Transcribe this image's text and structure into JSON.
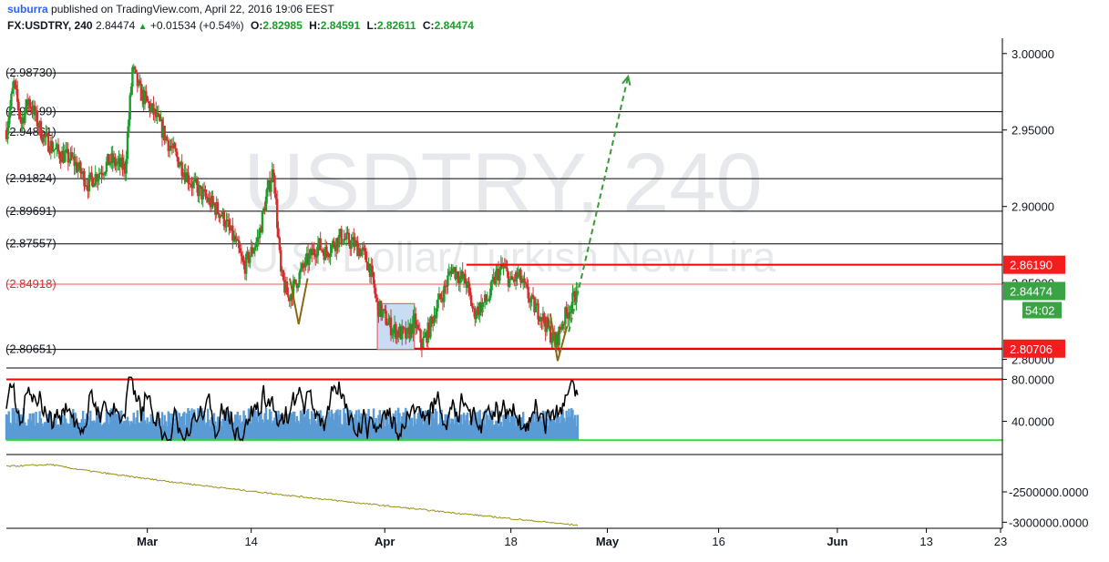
{
  "header": {
    "user": "suburra",
    "published_text": "published on TradingView.com, April 22, 2016 19:06 EEST",
    "symbol": "FX:USDTRY, 240",
    "last": "2.84474",
    "change": "+0.01534 (+0.54%)",
    "o_label": "O:",
    "o": "2.82985",
    "h_label": "H:",
    "h": "2.84591",
    "l_label": "L:",
    "l": "2.82611",
    "c_label": "C:",
    "c": "2.84474"
  },
  "watermark": {
    "symbol": "USDTRY, 240",
    "description": "U.S. Dollar/Turkish New Lira"
  },
  "colors": {
    "up": "#1a9e2a",
    "down": "#d32f2f",
    "resistance": "#ff0000",
    "annotation": "#8b6914",
    "projection": "#3b9a3b",
    "box": "#c8dcf3",
    "rsi_line": "#000000",
    "volume": "#5b9bd5",
    "oscillator": "#9a8f1a"
  },
  "chart_data": [
    {
      "type": "candlestick",
      "name": "price",
      "ylim": [
        2.795,
        3.01
      ],
      "y_ticks": [
        3.0,
        2.95,
        2.9,
        2.85,
        2.8
      ],
      "y_tick_labels": [
        "3.00000",
        "2.95000",
        "2.90000",
        "2.85000",
        "2.80000"
      ],
      "x_range_days": [
        41,
        175
      ],
      "x_ticks": [
        {
          "day": 60,
          "label": "Mar"
        },
        {
          "day": 74,
          "label": "14"
        },
        {
          "day": 92,
          "label": "Apr"
        },
        {
          "day": 109,
          "label": "18"
        },
        {
          "day": 122,
          "label": "May"
        },
        {
          "day": 137,
          "label": "16"
        },
        {
          "day": 153,
          "label": "Jun"
        },
        {
          "day": 165,
          "label": "13"
        },
        {
          "day": 175,
          "label": "23"
        }
      ],
      "anchors": [
        [
          41,
          2.95
        ],
        [
          42,
          2.98
        ],
        [
          43,
          2.955
        ],
        [
          44,
          2.97
        ],
        [
          46,
          2.945
        ],
        [
          48,
          2.935
        ],
        [
          50,
          2.93
        ],
        [
          52,
          2.915
        ],
        [
          55,
          2.93
        ],
        [
          57,
          2.925
        ],
        [
          58,
          2.99
        ],
        [
          59,
          2.975
        ],
        [
          61,
          2.96
        ],
        [
          63,
          2.94
        ],
        [
          66,
          2.915
        ],
        [
          68,
          2.905
        ],
        [
          70,
          2.895
        ],
        [
          71,
          2.885
        ],
        [
          72,
          2.875
        ],
        [
          73,
          2.86
        ],
        [
          75,
          2.88
        ],
        [
          76,
          2.905
        ],
        [
          77,
          2.925
        ],
        [
          78,
          2.855
        ],
        [
          79,
          2.84
        ],
        [
          81,
          2.86
        ],
        [
          83,
          2.875
        ],
        [
          84,
          2.87
        ],
        [
          86,
          2.88
        ],
        [
          88,
          2.875
        ],
        [
          89,
          2.87
        ],
        [
          90,
          2.86
        ],
        [
          91,
          2.835
        ],
        [
          93,
          2.82
        ],
        [
          95,
          2.815
        ],
        [
          96,
          2.825
        ],
        [
          97,
          2.81
        ],
        [
          98,
          2.82
        ],
        [
          99,
          2.835
        ],
        [
          100,
          2.845
        ],
        [
          101,
          2.86
        ],
        [
          103,
          2.85
        ],
        [
          104,
          2.83
        ],
        [
          106,
          2.84
        ],
        [
          107,
          2.855
        ],
        [
          108,
          2.86
        ],
        [
          109,
          2.85
        ],
        [
          110,
          2.855
        ],
        [
          111,
          2.845
        ],
        [
          112,
          2.835
        ],
        [
          113,
          2.83
        ],
        [
          114,
          2.82
        ],
        [
          115,
          2.81
        ],
        [
          116,
          2.825
        ],
        [
          117,
          2.835
        ],
        [
          118,
          2.845
        ]
      ],
      "horizontal_levels": [
        {
          "value": 2.9873,
          "label": "(2.98730)"
        },
        {
          "value": 2.96199,
          "label": "(2.96199)"
        },
        {
          "value": 2.94861,
          "label": "(2.94861)"
        },
        {
          "value": 2.91824,
          "label": "(2.91824)"
        },
        {
          "value": 2.89691,
          "label": "(2.89691)"
        },
        {
          "value": 2.87557,
          "label": "(2.87557)"
        },
        {
          "value": 2.84918,
          "label": "(2.84918)"
        },
        {
          "value": 2.80651,
          "label": "(2.80651)"
        }
      ],
      "resistance": {
        "value": 2.8619,
        "label": "2.86190",
        "from_day": 103
      },
      "support": {
        "value": 2.80706,
        "label": "2.80706",
        "from_day": 96
      },
      "last_price": {
        "value": 2.84474,
        "label": "2.84474"
      },
      "countdown": "54:02",
      "box": {
        "from_day": 91,
        "to_day": 96,
        "y_low": 2.8065,
        "y_high": 2.8365
      },
      "v_patterns": [
        {
          "left": [
            79.2,
            2.853
          ],
          "bottom": [
            80.4,
            2.823
          ],
          "right": [
            81.6,
            2.853
          ]
        },
        {
          "left": [
            114.3,
            2.83
          ],
          "bottom": [
            115.3,
            2.799
          ],
          "right": [
            116.6,
            2.822
          ]
        }
      ],
      "projection": {
        "from": [
          116.8,
          2.818
        ],
        "to": [
          124.8,
          2.985
        ]
      }
    },
    {
      "type": "line",
      "name": "rsi",
      "ylim": [
        10,
        90
      ],
      "y_ticks": [
        80,
        40
      ],
      "y_tick_labels": [
        "80.0000",
        "40.0000"
      ],
      "upper_level": 80,
      "lower_level": 22
    },
    {
      "type": "area",
      "name": "oscillator",
      "ylim": [
        -3100000,
        -1900000
      ],
      "y_ticks": [
        -2500000,
        -3000000
      ],
      "y_tick_labels": [
        "-2500000.0000",
        "-3000000.0000"
      ]
    }
  ]
}
